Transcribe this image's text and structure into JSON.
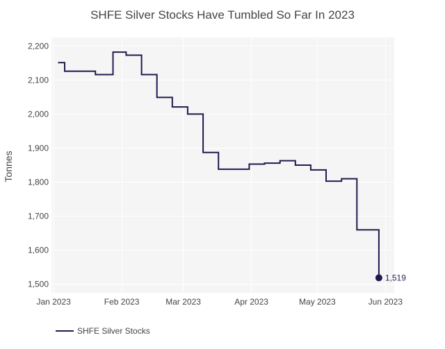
{
  "chart_data": {
    "type": "line",
    "title": "SHFE Silver Stocks Have Tumbled So Far In 2023",
    "xlabel": "",
    "ylabel": "Tonnes",
    "ylim": [
      1475,
      2225
    ],
    "xlim": [
      "2022-12-31",
      "2023-06-05"
    ],
    "grid": true,
    "line_shape": "step",
    "legend_position": "bottom-left",
    "y_ticks": [
      1500,
      1600,
      1700,
      1800,
      1900,
      2000,
      2100,
      2200
    ],
    "y_tick_labels": [
      "1,500",
      "1,600",
      "1,700",
      "1,800",
      "1,900",
      "2,000",
      "2,100",
      "2,200"
    ],
    "x_ticks": [
      "2023-01-01",
      "2023-02-01",
      "2023-03-01",
      "2023-04-01",
      "2023-05-01",
      "2023-06-01"
    ],
    "x_tick_labels": [
      "Jan 2023",
      "Feb 2023",
      "Mar 2023",
      "Apr 2023",
      "May 2023",
      "Jun 2023"
    ],
    "series": [
      {
        "name": "SHFE Silver Stocks",
        "color": "#1f1a4d",
        "x": [
          "2023-01-03",
          "2023-01-06",
          "2023-01-13",
          "2023-01-20",
          "2023-01-28",
          "2023-02-03",
          "2023-02-10",
          "2023-02-17",
          "2023-02-24",
          "2023-03-03",
          "2023-03-10",
          "2023-03-17",
          "2023-03-24",
          "2023-03-31",
          "2023-04-07",
          "2023-04-14",
          "2023-04-21",
          "2023-04-28",
          "2023-05-05",
          "2023-05-12",
          "2023-05-19",
          "2023-05-26",
          "2023-05-29"
        ],
        "y": [
          2151,
          2126,
          2126,
          2116,
          2182,
          2173,
          2116,
          2049,
          2021,
          2000,
          1887,
          1838,
          1838,
          1853,
          1856,
          1863,
          1850,
          1836,
          1803,
          1810,
          1660,
          1660,
          1519
        ],
        "end_label": "1,519"
      }
    ]
  }
}
